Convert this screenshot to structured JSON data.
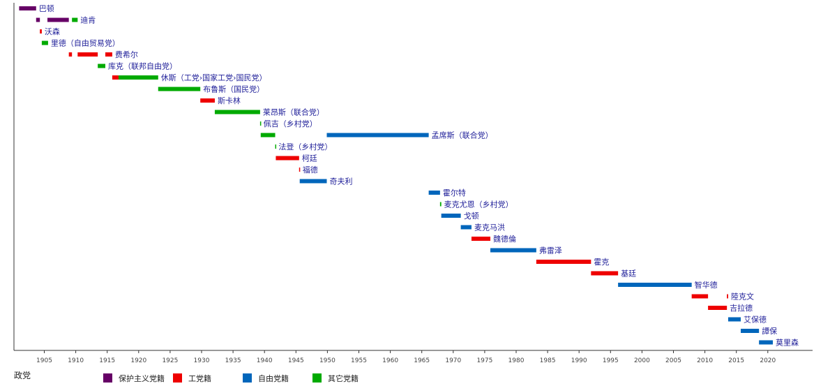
{
  "chart_data": {
    "type": "timeline",
    "axis_label": "政党",
    "x_range": [
      1901,
      2024
    ],
    "x_ticks": [
      1905,
      1910,
      1915,
      1920,
      1925,
      1930,
      1935,
      1940,
      1945,
      1950,
      1955,
      1960,
      1965,
      1970,
      1975,
      1980,
      1985,
      1990,
      1995,
      2000,
      2005,
      2010,
      2015,
      2020
    ],
    "legend": [
      {
        "key": "protectionist",
        "label": "保护主义党籍",
        "color": "#660066"
      },
      {
        "key": "labor",
        "label": "工党籍",
        "color": "#ee0000"
      },
      {
        "key": "liberal",
        "label": "自由党籍",
        "color": "#0066bb"
      },
      {
        "key": "other",
        "label": "其它党籍",
        "color": "#00aa00"
      }
    ],
    "prime_ministers": [
      {
        "name": "巴顿",
        "terms": [
          {
            "start": 1901.0,
            "end": 1903.7,
            "party": "protectionist"
          }
        ]
      },
      {
        "name": "迪肯",
        "terms": [
          {
            "start": 1903.7,
            "end": 1904.3,
            "party": "protectionist"
          },
          {
            "start": 1905.5,
            "end": 1908.9,
            "party": "protectionist"
          },
          {
            "start": 1909.4,
            "end": 1910.3,
            "party": "other"
          }
        ]
      },
      {
        "name": "沃森",
        "terms": [
          {
            "start": 1904.3,
            "end": 1904.6,
            "party": "labor"
          }
        ]
      },
      {
        "name": "里德（自由贸易党）",
        "terms": [
          {
            "start": 1904.6,
            "end": 1905.6,
            "party": "other"
          }
        ]
      },
      {
        "name": "费希尔",
        "terms": [
          {
            "start": 1908.9,
            "end": 1909.4,
            "party": "labor"
          },
          {
            "start": 1910.3,
            "end": 1913.5,
            "party": "labor"
          },
          {
            "start": 1914.7,
            "end": 1915.8,
            "party": "labor"
          }
        ]
      },
      {
        "name": "库克（联邦自由党）",
        "terms": [
          {
            "start": 1913.5,
            "end": 1914.7,
            "party": "other"
          }
        ]
      },
      {
        "name": "休斯（工党›国家工党›国民党）",
        "terms": [
          {
            "start": 1915.8,
            "end": 1916.8,
            "party": "labor"
          },
          {
            "start": 1916.8,
            "end": 1923.1,
            "party": "other"
          }
        ]
      },
      {
        "name": "布鲁斯（国民党）",
        "terms": [
          {
            "start": 1923.1,
            "end": 1929.8,
            "party": "other"
          }
        ]
      },
      {
        "name": "斯卡林",
        "terms": [
          {
            "start": 1929.8,
            "end": 1932.1,
            "party": "labor"
          }
        ]
      },
      {
        "name": "莱昂斯（联合党）",
        "terms": [
          {
            "start": 1932.1,
            "end": 1939.3,
            "party": "other"
          }
        ]
      },
      {
        "name": "佩吉（乡村党）",
        "terms": [
          {
            "start": 1939.3,
            "end": 1939.4,
            "party": "other"
          }
        ]
      },
      {
        "name": "孟席斯（联合党）",
        "terms": [
          {
            "start": 1939.4,
            "end": 1941.7,
            "party": "other"
          },
          {
            "start": 1949.9,
            "end": 1966.1,
            "party": "liberal"
          }
        ]
      },
      {
        "name": "法登（乡村党）",
        "terms": [
          {
            "start": 1941.7,
            "end": 1941.8,
            "party": "other"
          }
        ]
      },
      {
        "name": "柯廷",
        "terms": [
          {
            "start": 1941.8,
            "end": 1945.5,
            "party": "labor"
          }
        ]
      },
      {
        "name": "福德",
        "terms": [
          {
            "start": 1945.5,
            "end": 1945.6,
            "party": "labor"
          }
        ]
      },
      {
        "name": "奇夫利",
        "terms": [
          {
            "start": 1945.6,
            "end": 1949.9,
            "party": "liberal"
          }
        ]
      },
      {
        "name": "霍尔特",
        "terms": [
          {
            "start": 1966.1,
            "end": 1967.9,
            "party": "liberal"
          }
        ]
      },
      {
        "name": "麦克尤恩（乡村党）",
        "terms": [
          {
            "start": 1967.9,
            "end": 1968.1,
            "party": "other"
          }
        ]
      },
      {
        "name": "戈顿",
        "terms": [
          {
            "start": 1968.1,
            "end": 1971.2,
            "party": "liberal"
          }
        ]
      },
      {
        "name": "麦克马洪",
        "terms": [
          {
            "start": 1971.2,
            "end": 1972.9,
            "party": "liberal"
          }
        ]
      },
      {
        "name": "魏德倫",
        "terms": [
          {
            "start": 1972.9,
            "end": 1975.9,
            "party": "labor"
          }
        ]
      },
      {
        "name": "弗雷泽",
        "terms": [
          {
            "start": 1975.9,
            "end": 1983.2,
            "party": "liberal"
          }
        ]
      },
      {
        "name": "霍克",
        "terms": [
          {
            "start": 1983.2,
            "end": 1991.9,
            "party": "labor"
          }
        ]
      },
      {
        "name": "基廷",
        "terms": [
          {
            "start": 1991.9,
            "end": 1996.2,
            "party": "labor"
          }
        ]
      },
      {
        "name": "智华德",
        "terms": [
          {
            "start": 1996.2,
            "end": 2007.9,
            "party": "liberal"
          }
        ]
      },
      {
        "name": "陸克文",
        "terms": [
          {
            "start": 2007.9,
            "end": 2010.5,
            "party": "labor"
          },
          {
            "start": 2013.5,
            "end": 2013.7,
            "party": "labor"
          }
        ]
      },
      {
        "name": "吉拉德",
        "terms": [
          {
            "start": 2010.5,
            "end": 2013.5,
            "party": "labor"
          }
        ]
      },
      {
        "name": "艾保德",
        "terms": [
          {
            "start": 2013.7,
            "end": 2015.7,
            "party": "liberal"
          }
        ]
      },
      {
        "name": "譚保",
        "terms": [
          {
            "start": 2015.7,
            "end": 2018.6,
            "party": "liberal"
          }
        ]
      },
      {
        "name": "莫里森",
        "terms": [
          {
            "start": 2018.6,
            "end": 2020.8,
            "party": "liberal"
          }
        ]
      }
    ]
  }
}
